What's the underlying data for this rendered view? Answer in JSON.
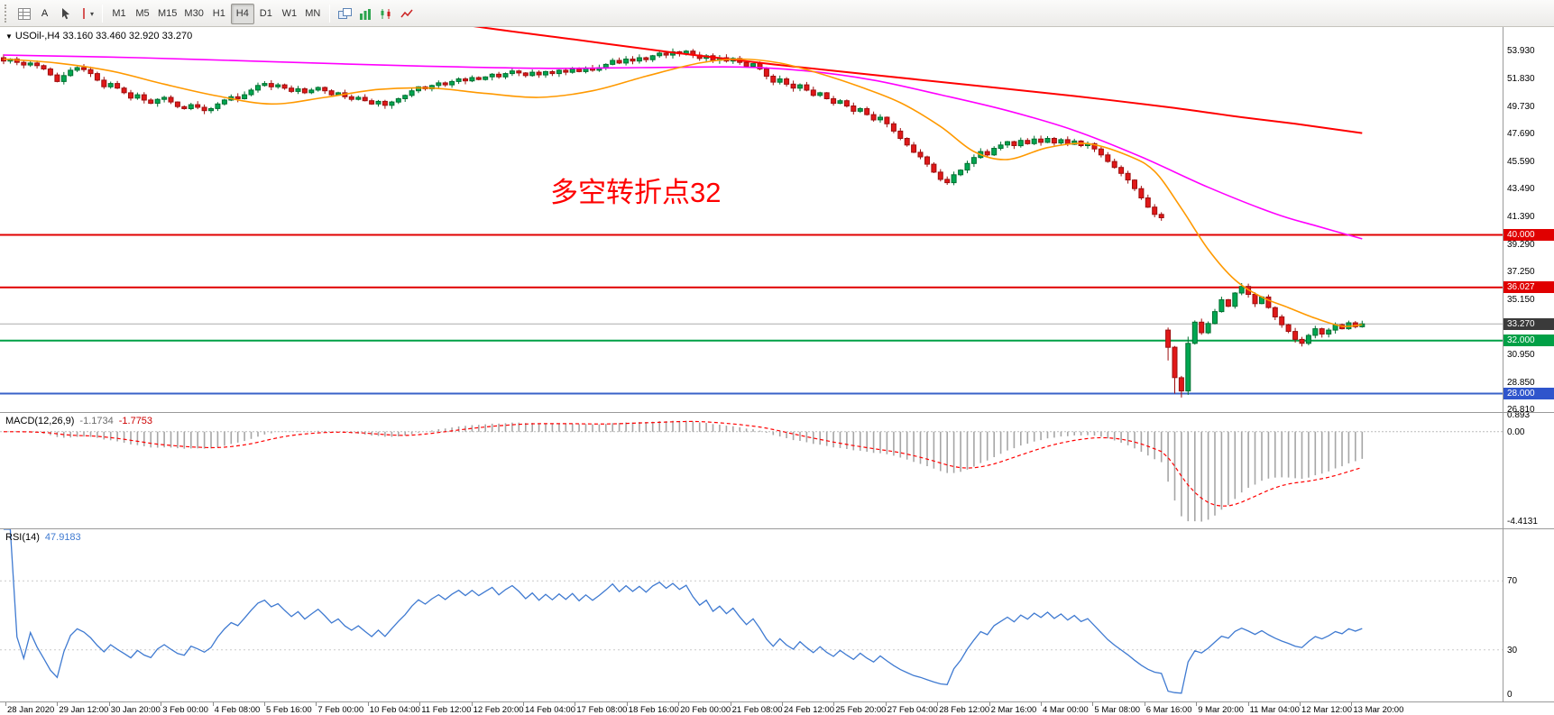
{
  "toolbar": {
    "font_button": "A",
    "timeframes": [
      "M1",
      "M5",
      "M15",
      "M30",
      "H1",
      "H4",
      "D1",
      "W1",
      "MN"
    ],
    "active_timeframe": "H4"
  },
  "chart": {
    "symbol_line": "USOil-,H4  33.160 33.460 32.920 33.270",
    "annotation": {
      "text": "多空转折点32",
      "color": "#fe0000"
    },
    "price_axis": {
      "ticks": [
        "53.930",
        "51.830",
        "49.730",
        "47.690",
        "45.590",
        "43.490",
        "41.390",
        "39.290",
        "37.250",
        "35.150",
        "30.950",
        "28.850",
        "26.810"
      ]
    },
    "levels": [
      {
        "label": "40.000",
        "price": 40.0,
        "line_color": "#e00000",
        "line_width": 2,
        "tag_bg": "#e00000"
      },
      {
        "label": "36.027",
        "price": 36.027,
        "line_color": "#e00000",
        "line_width": 2,
        "tag_bg": "#e00000"
      },
      {
        "label": "33.270",
        "price": 33.27,
        "line_color": "#ababab",
        "line_width": 1,
        "tag_bg": "#3a3a3a"
      },
      {
        "label": "32.000",
        "price": 32.0,
        "line_color": "#00a046",
        "line_width": 2,
        "tag_bg": "#00a046"
      },
      {
        "label": "28.000",
        "price": 28.0,
        "line_color": "#3a62c8",
        "line_width": 2,
        "tag_bg": "#2f55cc"
      }
    ]
  },
  "macd_panel": {
    "label": "MACD(12,26,9)",
    "main_value": "-1.1734",
    "signal_value": "-1.7753",
    "axis": [
      "0.893",
      "0.00",
      "-4.4131"
    ]
  },
  "rsi_panel": {
    "label": "RSI(14)",
    "value": "47.9183",
    "axis": [
      "70",
      "30",
      "0"
    ],
    "levels": [
      70,
      30
    ]
  },
  "chart_data": {
    "type": "candlestick",
    "symbol": "USOil",
    "timeframe": "H4",
    "title": "USOil-,H4",
    "price_range": [
      26.6,
      55.72
    ],
    "first_open": 53.4,
    "closes": [
      53.15,
      53.3,
      53.05,
      52.85,
      53.0,
      52.8,
      52.55,
      52.1,
      51.6,
      52.05,
      52.45,
      52.65,
      52.5,
      52.2,
      51.7,
      51.2,
      51.45,
      51.1,
      50.75,
      50.35,
      50.6,
      50.2,
      49.95,
      50.25,
      50.4,
      50.05,
      49.7,
      49.55,
      49.85,
      49.65,
      49.4,
      49.55,
      49.9,
      50.2,
      50.45,
      50.3,
      50.6,
      50.95,
      51.3,
      51.45,
      51.2,
      51.35,
      51.1,
      50.85,
      51.05,
      50.75,
      50.95,
      51.15,
      50.9,
      50.6,
      50.75,
      50.45,
      50.25,
      50.4,
      50.15,
      49.9,
      50.1,
      49.8,
      50.05,
      50.3,
      50.55,
      50.9,
      51.2,
      51.05,
      51.3,
      51.5,
      51.35,
      51.6,
      51.8,
      51.65,
      51.9,
      51.75,
      51.95,
      52.15,
      51.95,
      52.2,
      52.4,
      52.25,
      52.05,
      52.3,
      52.1,
      52.35,
      52.2,
      52.45,
      52.3,
      52.55,
      52.35,
      52.6,
      52.45,
      52.65,
      52.9,
      53.2,
      53.0,
      53.3,
      53.15,
      53.4,
      53.25,
      53.55,
      53.75,
      53.6,
      53.85,
      53.7,
      53.9,
      53.6,
      53.35,
      53.55,
      53.2,
      53.4,
      53.15,
      53.35,
      53.05,
      52.75,
      52.95,
      52.55,
      52.0,
      51.55,
      51.8,
      51.4,
      51.1,
      51.35,
      50.95,
      50.55,
      50.75,
      50.3,
      49.95,
      50.15,
      49.75,
      49.35,
      49.55,
      49.1,
      48.7,
      48.9,
      48.4,
      47.85,
      47.3,
      46.8,
      46.25,
      45.9,
      45.35,
      44.75,
      44.2,
      43.95,
      44.55,
      44.9,
      45.4,
      45.85,
      46.3,
      46.05,
      46.55,
      46.8,
      47.05,
      46.75,
      47.15,
      46.9,
      47.25,
      47.0,
      47.3,
      46.95,
      47.2,
      46.85,
      47.1,
      46.75,
      46.9,
      46.5,
      46.05,
      45.55,
      45.1,
      44.65,
      44.15,
      43.5,
      42.8,
      42.1,
      41.55,
      41.3,
      31.5,
      29.2,
      28.2,
      31.8,
      33.4,
      32.6,
      33.3,
      34.2,
      35.1,
      34.6,
      35.6,
      36.1,
      35.5,
      34.8,
      35.3,
      34.5,
      33.8,
      33.2,
      32.7,
      32.1,
      31.8,
      32.4,
      32.9,
      32.5,
      32.8,
      33.2,
      32.9,
      33.35,
      33.05,
      33.27
    ],
    "open_overrides": {
      "174": 32.8
    },
    "high_overrides": {
      "177": 32.3,
      "185": 36.35
    },
    "low_overrides": {
      "174": 30.5,
      "175": 28.0,
      "176": 27.7,
      "177": 27.9
    },
    "ma_orange": [
      [
        0,
        53.3
      ],
      [
        8,
        53.0
      ],
      [
        16,
        52.4
      ],
      [
        24,
        51.4
      ],
      [
        32,
        50.5
      ],
      [
        40,
        49.9
      ],
      [
        48,
        50.4
      ],
      [
        56,
        51.0
      ],
      [
        64,
        51.1
      ],
      [
        72,
        50.7
      ],
      [
        80,
        50.4
      ],
      [
        88,
        50.9
      ],
      [
        96,
        52.0
      ],
      [
        104,
        53.0
      ],
      [
        110,
        53.3
      ],
      [
        116,
        53.0
      ],
      [
        122,
        52.2
      ],
      [
        128,
        51.2
      ],
      [
        134,
        50.0
      ],
      [
        140,
        48.2
      ],
      [
        145,
        46.3
      ],
      [
        150,
        45.7
      ],
      [
        156,
        46.6
      ],
      [
        162,
        46.9
      ],
      [
        168,
        46.0
      ],
      [
        172,
        44.8
      ],
      [
        176,
        42.0
      ],
      [
        180,
        38.9
      ],
      [
        184,
        36.6
      ],
      [
        188,
        35.3
      ],
      [
        192,
        34.5
      ],
      [
        196,
        33.7
      ],
      [
        200,
        33.1
      ],
      [
        203,
        33.2
      ]
    ],
    "ma_magenta": [
      [
        0,
        53.6
      ],
      [
        20,
        53.4
      ],
      [
        40,
        53.1
      ],
      [
        60,
        52.8
      ],
      [
        80,
        52.6
      ],
      [
        95,
        52.65
      ],
      [
        110,
        52.7
      ],
      [
        120,
        52.4
      ],
      [
        130,
        51.7
      ],
      [
        140,
        50.6
      ],
      [
        150,
        49.4
      ],
      [
        160,
        47.9
      ],
      [
        170,
        45.9
      ],
      [
        180,
        43.6
      ],
      [
        190,
        41.6
      ],
      [
        196,
        40.7
      ],
      [
        203,
        39.7
      ]
    ],
    "ma_red": [
      [
        55,
        57.0
      ],
      [
        70,
        55.8
      ],
      [
        85,
        54.8
      ],
      [
        100,
        53.8
      ],
      [
        115,
        52.9
      ],
      [
        130,
        52.1
      ],
      [
        145,
        51.3
      ],
      [
        160,
        50.5
      ],
      [
        175,
        49.6
      ],
      [
        185,
        48.9
      ],
      [
        193,
        48.4
      ],
      [
        203,
        47.7
      ]
    ],
    "time_labels": [
      "28 Jan 2020",
      "29 Jan 12:00",
      "30 Jan 20:00",
      "3 Feb 00:00",
      "4 Feb 08:00",
      "5 Feb 16:00",
      "7 Feb 00:00",
      "10 Feb 04:00",
      "11 Feb 12:00",
      "12 Feb 20:00",
      "14 Feb 04:00",
      "17 Feb 08:00",
      "18 Feb 16:00",
      "20 Feb 00:00",
      "21 Feb 08:00",
      "24 Feb 12:00",
      "25 Feb 20:00",
      "27 Feb 04:00",
      "28 Feb 12:00",
      "2 Mar 16:00",
      "4 Mar 00:00",
      "5 Mar 08:00",
      "6 Mar 16:00",
      "9 Mar 20:00",
      "11 Mar 04:00",
      "12 Mar 12:00",
      "13 Mar 20:00"
    ],
    "colors": {
      "up": "#00a651",
      "up_stroke": "#00702f",
      "down": "#e01818",
      "down_stroke": "#9e0f0f",
      "ma_orange": "#ff9900",
      "ma_magenta": "#ff00ff",
      "ma_red": "#ff0000",
      "macd_bar": "#a6a6a6",
      "macd_signal": "#ff0000",
      "rsi_line": "#3f7ad1",
      "grid": "#c8c8c8"
    },
    "indicators": {
      "macd": {
        "fast": 12,
        "slow": 26,
        "signal": 9
      },
      "rsi": {
        "period": 14
      }
    }
  }
}
